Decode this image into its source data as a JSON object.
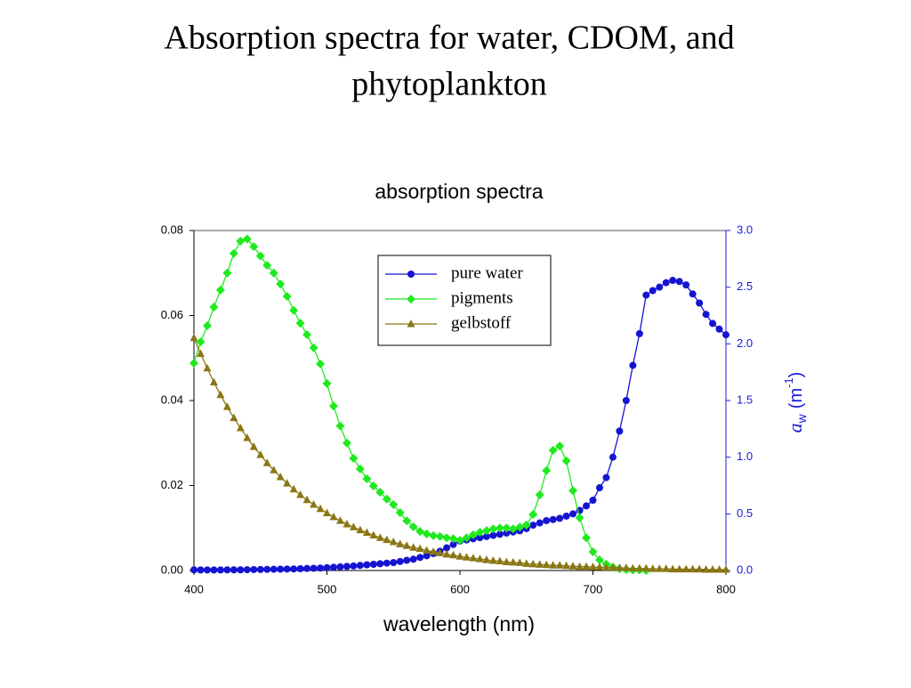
{
  "chart_data": {
    "type": "line",
    "slide_title_lines": [
      "Absorption spectra for water, CDOM, and",
      "phytoplankton"
    ],
    "title": "absorption spectra",
    "xlabel": "wavelength  (nm)",
    "y2label": {
      "main": "a",
      "sub": "w",
      "unit": "(m",
      "sup": "-1",
      "close": ")"
    },
    "x": [
      400,
      405,
      410,
      415,
      420,
      425,
      430,
      435,
      440,
      445,
      450,
      455,
      460,
      465,
      470,
      475,
      480,
      485,
      490,
      495,
      500,
      505,
      510,
      515,
      520,
      525,
      530,
      535,
      540,
      545,
      550,
      555,
      560,
      565,
      570,
      575,
      580,
      585,
      590,
      595,
      600,
      605,
      610,
      615,
      620,
      625,
      630,
      635,
      640,
      645,
      650,
      655,
      660,
      665,
      670,
      675,
      680,
      685,
      690,
      695,
      700,
      705,
      710,
      715,
      720,
      725,
      730,
      735,
      740,
      745,
      750,
      755,
      760,
      765,
      770,
      775,
      780,
      785,
      790,
      795,
      800
    ],
    "xlim": [
      400,
      800
    ],
    "xticks": [
      400,
      500,
      600,
      700,
      800
    ],
    "ylim": [
      0,
      0.08
    ],
    "yticks": [
      {
        "value": 0,
        "label": "0.00"
      },
      {
        "value": 0.02,
        "label": "0.02"
      },
      {
        "value": 0.04,
        "label": "0.04"
      },
      {
        "value": 0.06,
        "label": "0.06"
      },
      {
        "value": 0.08,
        "label": "0.08"
      }
    ],
    "y2lim": [
      0,
      3
    ],
    "y2ticks": [
      {
        "value": 0,
        "label": "0.0"
      },
      0.5,
      {
        "value": 1,
        "label": "1.0"
      },
      1.5,
      {
        "value": 2,
        "label": "2.0"
      },
      2.5,
      {
        "value": 3,
        "label": "3.0"
      }
    ],
    "y2color": "#1a1adc",
    "legend": "upper center",
    "series": [
      {
        "name": "pure water",
        "color": "#1414d2",
        "marker": "circle",
        "axis": "y2",
        "values": [
          0.006,
          0.005,
          0.005,
          0.005,
          0.005,
          0.006,
          0.006,
          0.006,
          0.007,
          0.008,
          0.009,
          0.01,
          0.011,
          0.012,
          0.013,
          0.014,
          0.016,
          0.018,
          0.02,
          0.022,
          0.025,
          0.028,
          0.032,
          0.036,
          0.04,
          0.045,
          0.05,
          0.055,
          0.06,
          0.065,
          0.07,
          0.08,
          0.09,
          0.1,
          0.115,
          0.13,
          0.15,
          0.17,
          0.2,
          0.23,
          0.26,
          0.27,
          0.28,
          0.29,
          0.3,
          0.31,
          0.32,
          0.33,
          0.34,
          0.35,
          0.37,
          0.4,
          0.42,
          0.44,
          0.45,
          0.46,
          0.48,
          0.5,
          0.53,
          0.57,
          0.62,
          0.73,
          0.82,
          1.0,
          1.23,
          1.5,
          1.81,
          2.09,
          2.43,
          2.47,
          2.5,
          2.54,
          2.56,
          2.55,
          2.52,
          2.44,
          2.36,
          2.26,
          2.18,
          2.13,
          2.08
        ]
      },
      {
        "name": "pigments",
        "color": "#1eea1e",
        "marker": "diamond",
        "values": [
          0.0488,
          0.0538,
          0.0576,
          0.062,
          0.066,
          0.07,
          0.0746,
          0.0775,
          0.078,
          0.0762,
          0.074,
          0.0718,
          0.07,
          0.0674,
          0.0645,
          0.0612,
          0.0582,
          0.0555,
          0.0524,
          0.0486,
          0.044,
          0.0387,
          0.034,
          0.03,
          0.0264,
          0.0239,
          0.0216,
          0.0199,
          0.0184,
          0.0168,
          0.0155,
          0.0136,
          0.0117,
          0.0103,
          0.0092,
          0.0086,
          0.0082,
          0.008,
          0.0077,
          0.0075,
          0.0071,
          0.0077,
          0.0084,
          0.009,
          0.0094,
          0.0098,
          0.01,
          0.01,
          0.0098,
          0.0102,
          0.0107,
          0.0132,
          0.0178,
          0.0235,
          0.0283,
          0.0293,
          0.0258,
          0.0188,
          0.0124,
          0.0077,
          0.0044,
          0.0025,
          0.0015,
          0.0008,
          0.0004,
          0.0002,
          0.0001,
          0.0001,
          0,
          null,
          null,
          null,
          null,
          null,
          null,
          null,
          null,
          null,
          null,
          null,
          null
        ]
      },
      {
        "name": "gelbstoff",
        "color": "#8a7714",
        "marker": "triangle",
        "values": [
          0.0547,
          0.051,
          0.0476,
          0.0443,
          0.0413,
          0.0385,
          0.0359,
          0.0335,
          0.0312,
          0.0291,
          0.0272,
          0.0253,
          0.0236,
          0.022,
          0.0205,
          0.0191,
          0.0178,
          0.0166,
          0.0155,
          0.0145,
          0.0135,
          0.0126,
          0.0117,
          0.0109,
          0.0102,
          0.0095,
          0.0089,
          0.0083,
          0.0077,
          0.0072,
          0.0067,
          0.0062,
          0.0058,
          0.0054,
          0.0051,
          0.0047,
          0.0044,
          0.0041,
          0.0038,
          0.0036,
          0.0033,
          0.0031,
          0.0029,
          0.0027,
          0.0025,
          0.0023,
          0.0022,
          0.002,
          0.0019,
          0.0018,
          0.0016,
          0.0015,
          0.0014,
          0.0013,
          0.0012,
          0.0012,
          0.0011,
          0.001,
          0.0009,
          0.0009,
          0.0008,
          0.0008,
          0.0007,
          0.0007,
          0.0006,
          0.0006,
          0.0005,
          0.0005,
          0.0005,
          0.0004,
          0.0004,
          0.0004,
          0.0003,
          0.0003,
          0.0003,
          0.0003,
          0.0003,
          0.0002,
          0.0002,
          0.0002,
          0.0002
        ]
      }
    ]
  }
}
